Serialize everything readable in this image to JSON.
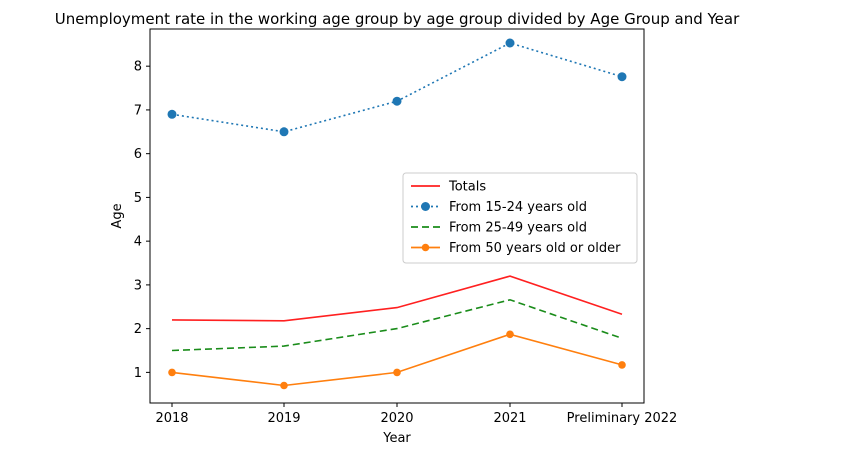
{
  "chart_data": {
    "type": "line",
    "title": "Unemployment rate in the working age group by age group divided by Age Group and Year",
    "xlabel": "Year",
    "ylabel": "Age",
    "categories": [
      "2018",
      "2019",
      "2020",
      "2021",
      "Preliminary 2022"
    ],
    "yticks": [
      1,
      2,
      3,
      4,
      5,
      6,
      7,
      8
    ],
    "ylim": [
      0.3,
      8.85
    ],
    "grid": false,
    "legend_position": "center-right",
    "series": [
      {
        "name": "Totals",
        "values": [
          2.2,
          2.18,
          2.48,
          3.2,
          2.33
        ],
        "color": "#ff2020",
        "dash": "solid",
        "marker": "none"
      },
      {
        "name": "From 15-24 years old",
        "values": [
          6.9,
          6.5,
          7.2,
          8.53,
          7.76
        ],
        "color": "#1f77b4",
        "dash": "dotted",
        "marker": "circle"
      },
      {
        "name": "From 25-49 years old",
        "values": [
          1.5,
          1.6,
          2.0,
          2.66,
          1.78
        ],
        "color": "#1a8c1a",
        "dash": "dashed",
        "marker": "none"
      },
      {
        "name": "From 50 years old or older",
        "values": [
          1.0,
          0.7,
          1.0,
          1.87,
          1.17
        ],
        "color": "#ff7f0e",
        "dash": "solid",
        "marker": "circle-small"
      }
    ]
  }
}
